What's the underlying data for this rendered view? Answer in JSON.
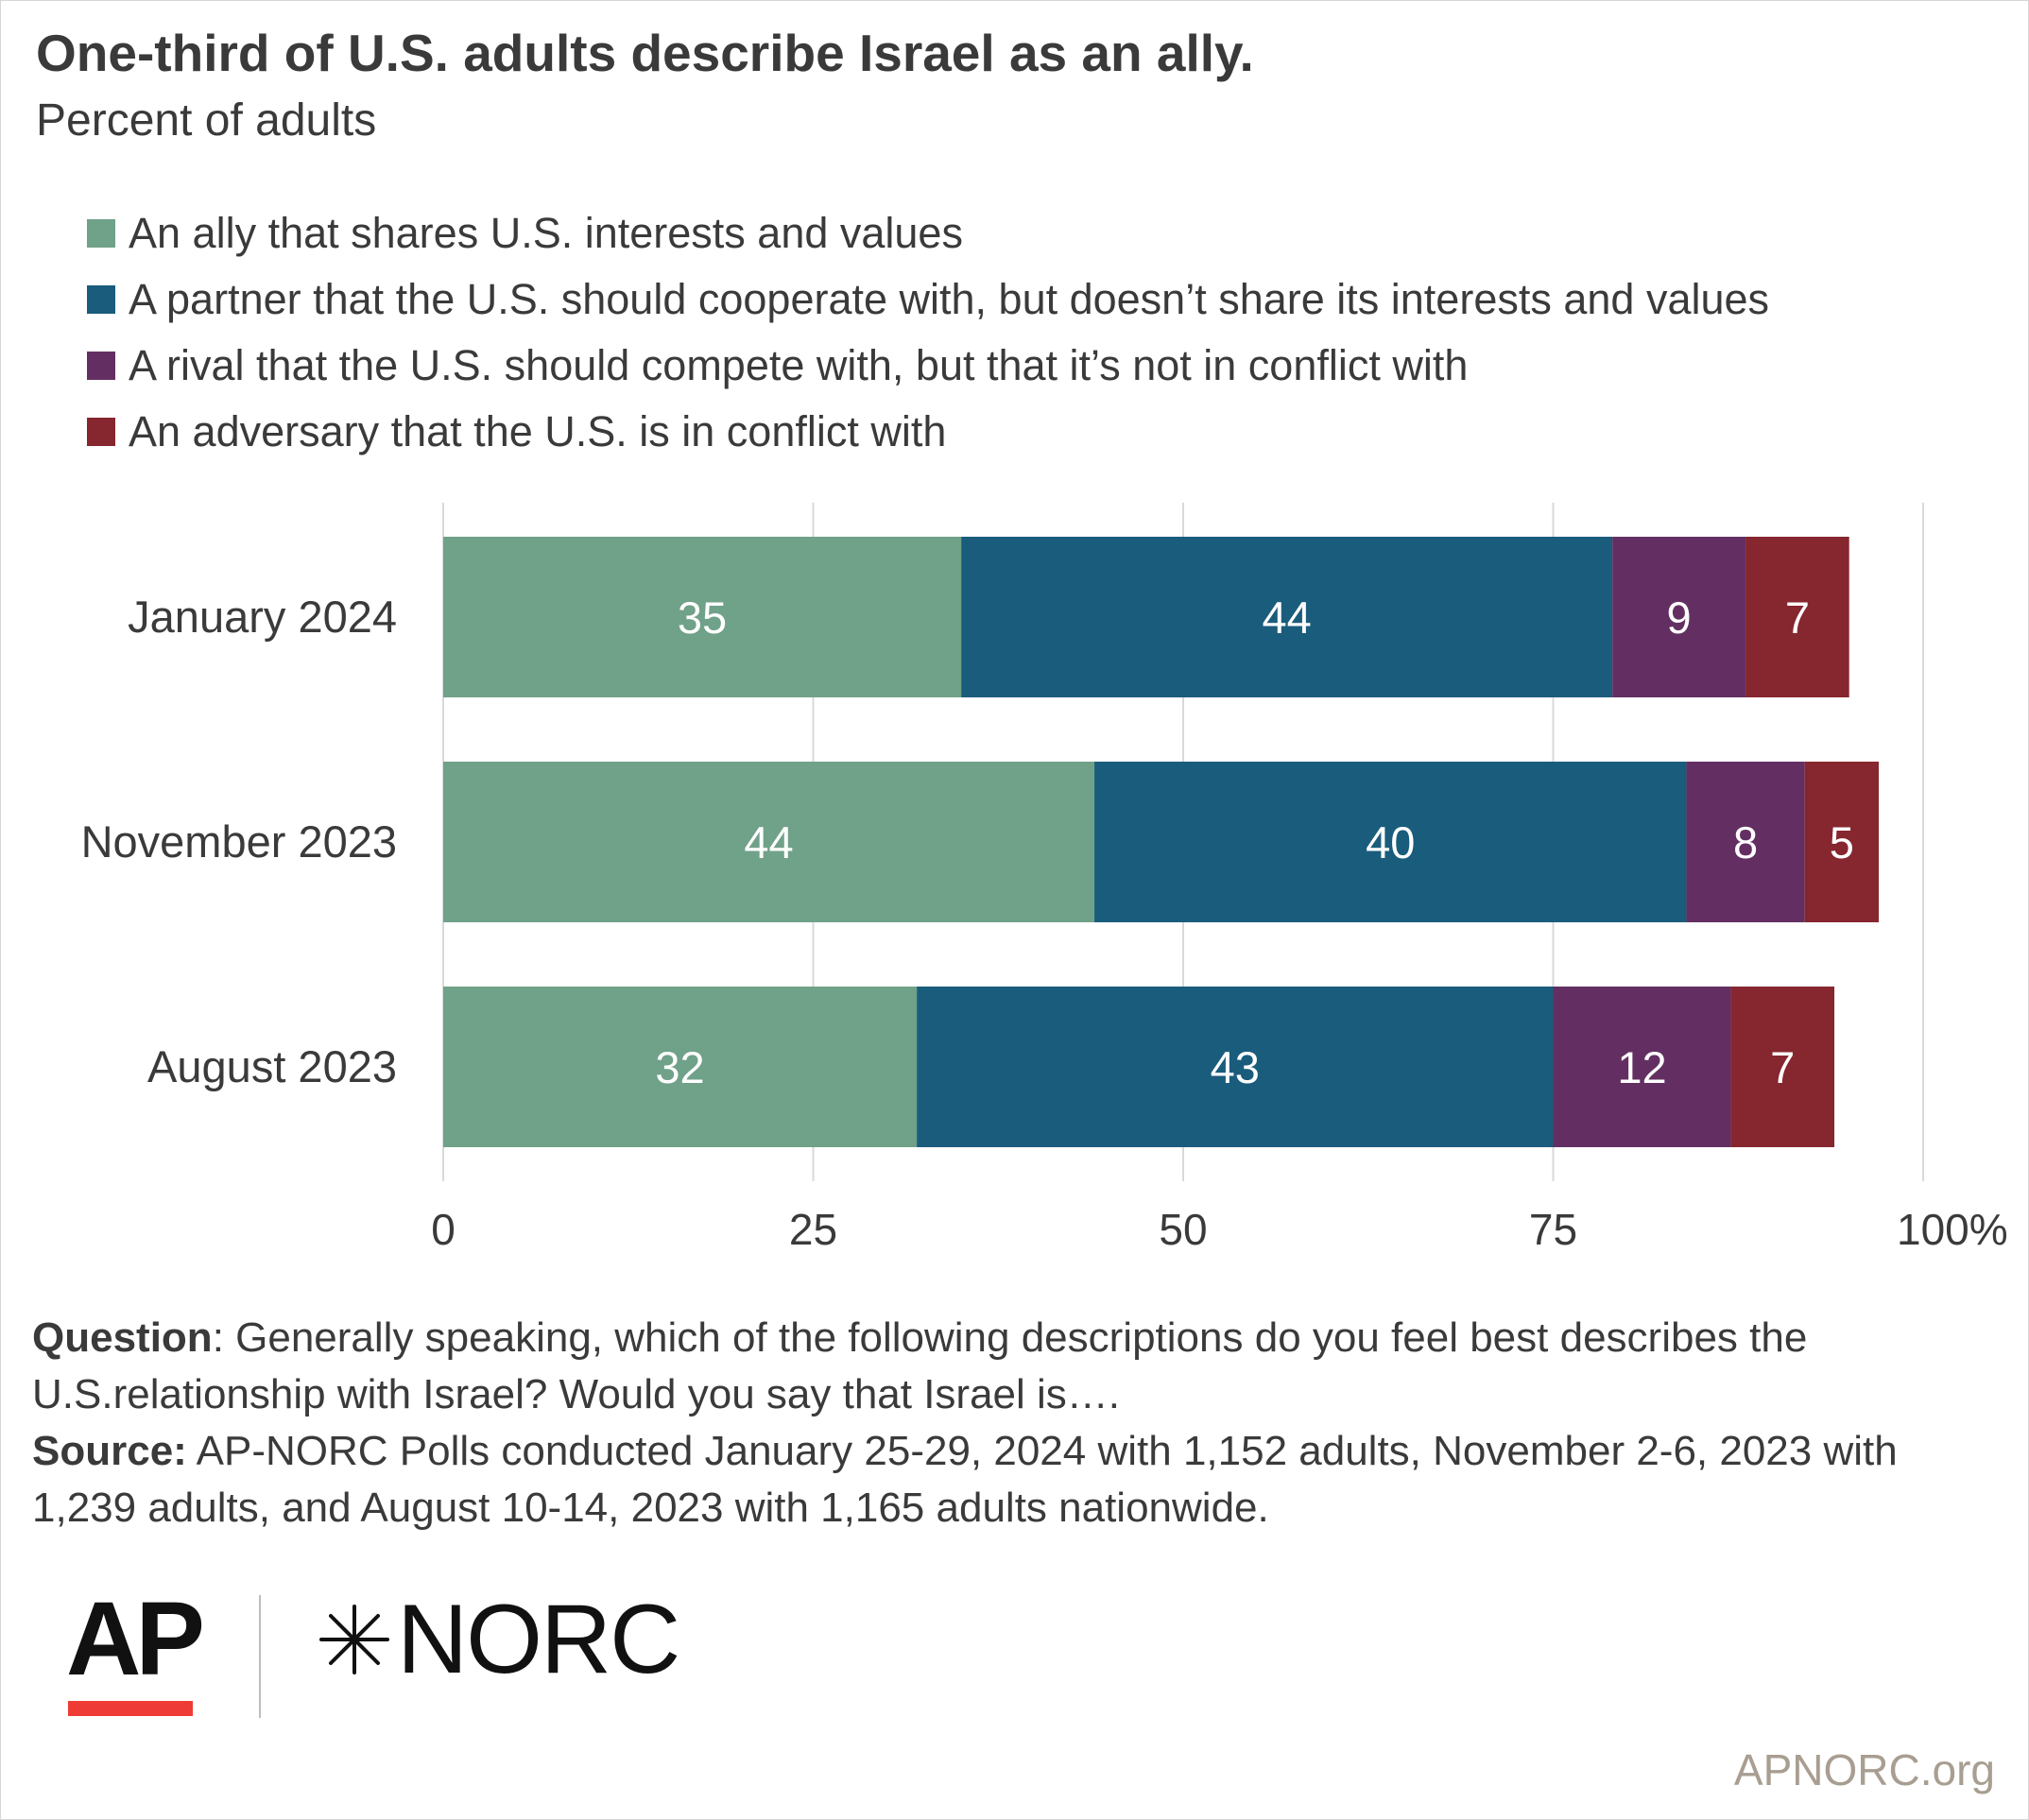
{
  "header": {
    "title": "One-third of U.S. adults describe Israel as an ally.",
    "subtitle": "Percent of adults"
  },
  "colors": {
    "ally": "#70a189",
    "partner": "#1a5c7c",
    "rival": "#632f62",
    "adversary": "#86262f",
    "grid": "#d9d9d9",
    "label_text": "#ffffff",
    "site_text": "#a89e91"
  },
  "chart_data": {
    "type": "bar",
    "orientation": "horizontal",
    "stacked": true,
    "categories": [
      "January 2024",
      "November 2023",
      "August 2023"
    ],
    "series": [
      {
        "name": "An ally that shares U.S. interests and values",
        "color": "#70a189",
        "values": [
          35,
          44,
          32
        ]
      },
      {
        "name": "A partner that the U.S. should cooperate with, but doesn’t share its interests and values",
        "color": "#1a5c7c",
        "values": [
          44,
          40,
          43
        ]
      },
      {
        "name": "A rival that the U.S. should compete with, but that it’s not in conflict with",
        "color": "#632f62",
        "values": [
          9,
          8,
          12
        ]
      },
      {
        "name": "An adversary that the U.S. is in conflict with",
        "color": "#86262f",
        "values": [
          7,
          5,
          7
        ]
      }
    ],
    "x_ticks": [
      "0",
      "25",
      "50",
      "75",
      "100%"
    ],
    "x_tick_values": [
      0,
      25,
      50,
      75,
      100
    ],
    "xlim": [
      0,
      100
    ],
    "grid": "vertical",
    "legend_position": "top-left"
  },
  "footnote": {
    "question_label": "Question",
    "question_text": ": Generally speaking, which of the following descriptions do you feel best describes the U.S.relationship with Israel? Would you say that Israel is….",
    "source_label": "Source:",
    "source_text": " AP-NORC Polls conducted January 25-29, 2024 with 1,152 adults, November 2-6, 2023 with 1,239 adults, and August 10-14, 2023 with 1,165 adults nationwide."
  },
  "logos": {
    "ap": "AP",
    "norc": "NORC"
  },
  "site": "APNORC.org"
}
